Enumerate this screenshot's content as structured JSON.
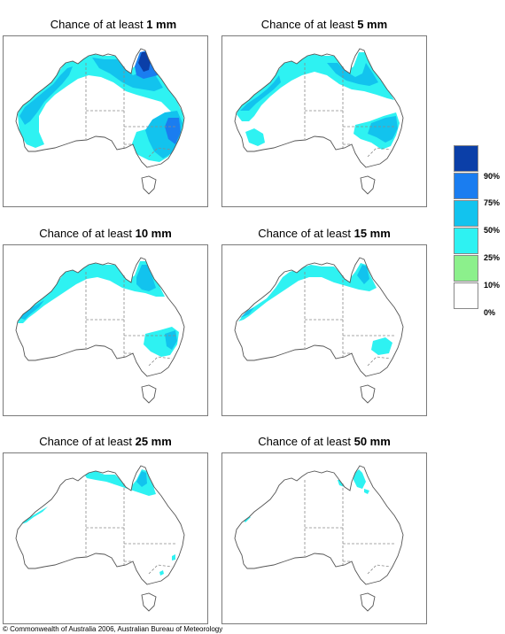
{
  "panels": [
    {
      "prefix": "Chance of at least",
      "amount": "1 mm"
    },
    {
      "prefix": "Chance of at least",
      "amount": "5 mm"
    },
    {
      "prefix": "Chance of at least",
      "amount": "10 mm"
    },
    {
      "prefix": "Chance of at least",
      "amount": "15 mm"
    },
    {
      "prefix": "Chance of at least",
      "amount": "25 mm"
    },
    {
      "prefix": "Chance of at least",
      "amount": "50 mm"
    }
  ],
  "legend": {
    "labels": [
      "90%",
      "75%",
      "50%",
      "25%",
      "10%",
      "0%"
    ],
    "colors": [
      "#0b3fa8",
      "#1a7df0",
      "#12c3ee",
      "#2ef2f2",
      "#8cf08c",
      "#ffffff"
    ]
  },
  "copyright": "© Commonwealth of Australia 2006, Australian Bureau of Meteorology"
}
